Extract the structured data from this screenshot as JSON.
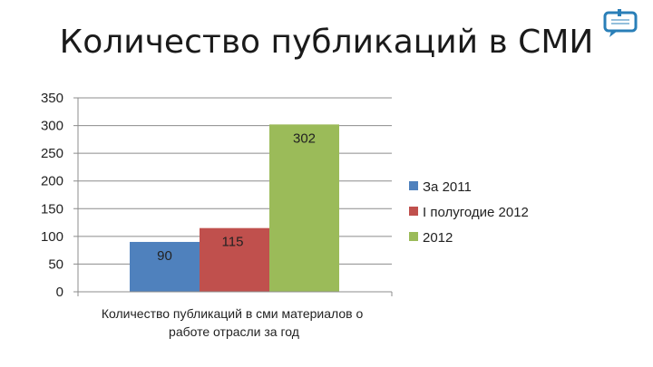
{
  "logo": {
    "icon": "speech-bubble-logo-icon",
    "color": "#2a7fb8",
    "text": ""
  },
  "chart_data": {
    "type": "bar",
    "title": "Количество публикаций в СМИ",
    "categories": [
      "Количество публикаций в сми материалов о работе отрасли за год"
    ],
    "category_lines": [
      "Количество публикаций в сми материалов о",
      "работе отрасли за год"
    ],
    "series": [
      {
        "name": "За 2011",
        "values": [
          90
        ],
        "color": "#4f81bd"
      },
      {
        "name": "I полугодие 2012",
        "values": [
          115
        ],
        "color": "#c0504d"
      },
      {
        "name": "2012",
        "values": [
          302
        ],
        "color": "#9bbb59"
      }
    ],
    "data_labels": [
      "90",
      "115",
      "302"
    ],
    "xlabel": "",
    "ylabel": "",
    "ylim": [
      0,
      350
    ],
    "yticks": [
      0,
      50,
      100,
      150,
      200,
      250,
      300,
      350
    ],
    "grid": true,
    "legend_position": "right"
  }
}
